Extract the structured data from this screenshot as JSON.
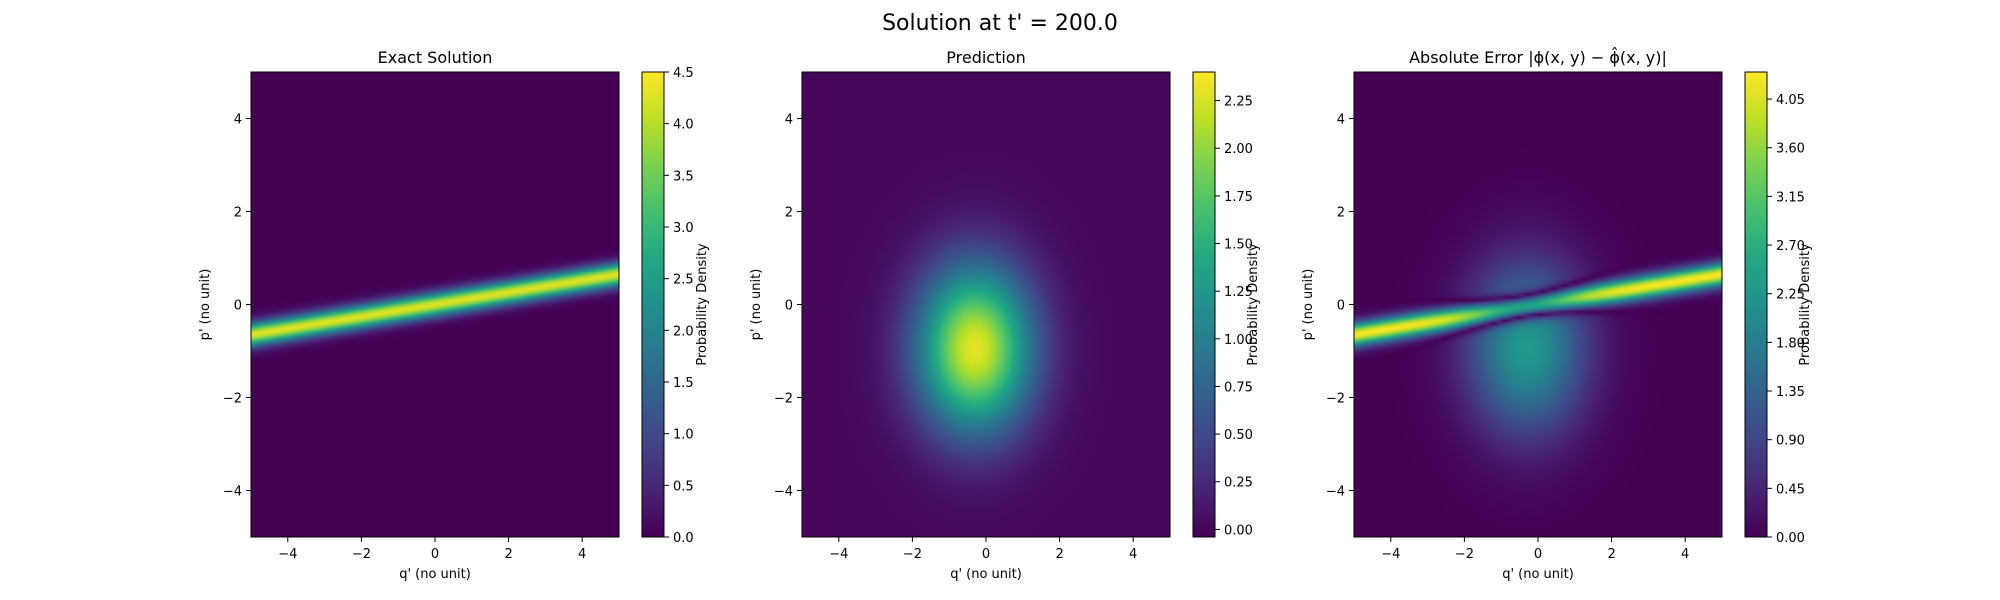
{
  "suptitle": "Solution at t' = 200.0",
  "colors": {
    "viridis": [
      "#440154",
      "#482475",
      "#414487",
      "#355f8d",
      "#2a788e",
      "#21918c",
      "#22a884",
      "#44bf70",
      "#7ad151",
      "#bddf26",
      "#fde725"
    ]
  },
  "chart_data": [
    {
      "type": "heatmap",
      "title": "Exact Solution",
      "xlabel": "q' (no unit)",
      "ylabel": "p' (no unit)",
      "xlim": [
        -5,
        5
      ],
      "ylim": [
        -5,
        5
      ],
      "xticks": [
        -4,
        -2,
        0,
        2,
        4
      ],
      "yticks": [
        -4,
        -2,
        0,
        2,
        4
      ],
      "xtick_labels": [
        "−4",
        "−2",
        "0",
        "2",
        "4"
      ],
      "ytick_labels": [
        "−4",
        "−2",
        "0",
        "2",
        "4"
      ],
      "colorbar": {
        "label": "Probability Density",
        "range": [
          0,
          4.5
        ],
        "ticks": [
          0,
          0.5,
          1,
          1.5,
          2,
          2.5,
          3,
          3.5,
          4,
          4.5
        ],
        "tick_labels": [
          "0.0",
          "0.5",
          "1.0",
          "1.5",
          "2.0",
          "2.5",
          "3.0",
          "3.5",
          "4.0",
          "4.5"
        ]
      },
      "features": [
        {
          "shape": "ridge",
          "through": [
            0,
            0
          ],
          "slope": 0.13,
          "width": 0.17,
          "peak": 4.3
        }
      ]
    },
    {
      "type": "heatmap",
      "title": "Prediction",
      "xlabel": "q' (no unit)",
      "ylabel": "p' (no unit)",
      "xlim": [
        -5,
        5
      ],
      "ylim": [
        -5,
        5
      ],
      "xticks": [
        -4,
        -2,
        0,
        2,
        4
      ],
      "yticks": [
        -4,
        -2,
        0,
        2,
        4
      ],
      "xtick_labels": [
        "−4",
        "−2",
        "0",
        "2",
        "4"
      ],
      "ytick_labels": [
        "−4",
        "−2",
        "0",
        "2",
        "4"
      ],
      "colorbar": {
        "label": "Probability Density",
        "range": [
          -0.04,
          2.4
        ],
        "ticks": [
          0,
          0.25,
          0.5,
          0.75,
          1,
          1.25,
          1.5,
          1.75,
          2,
          2.25
        ],
        "tick_labels": [
          "0.00",
          "0.25",
          "0.50",
          "0.75",
          "1.00",
          "1.25",
          "1.50",
          "1.75",
          "2.00",
          "2.25"
        ]
      },
      "features": [
        {
          "shape": "blob",
          "center": [
            -0.3,
            -0.95
          ],
          "sigma": [
            1.1,
            1.25
          ],
          "peak": 2.3
        }
      ]
    },
    {
      "type": "heatmap",
      "title": "Absolute Error |ϕ(x, y) − ϕ̂(x, y)|",
      "xlabel": "q' (no unit)",
      "ylabel": "p' (no unit)",
      "xlim": [
        -5,
        5
      ],
      "ylim": [
        -5,
        5
      ],
      "xticks": [
        -4,
        -2,
        0,
        2,
        4
      ],
      "yticks": [
        -4,
        -2,
        0,
        2,
        4
      ],
      "xtick_labels": [
        "−4",
        "−2",
        "0",
        "2",
        "4"
      ],
      "ytick_labels": [
        "−4",
        "−2",
        "0",
        "2",
        "4"
      ],
      "colorbar": {
        "label": "Probability Density",
        "range": [
          0,
          4.3
        ],
        "ticks": [
          0,
          0.45,
          0.9,
          1.35,
          1.8,
          2.25,
          2.7,
          3.15,
          3.6,
          4.05
        ],
        "tick_labels": [
          "0.00",
          "0.45",
          "0.90",
          "1.35",
          "1.80",
          "2.25",
          "2.70",
          "3.15",
          "3.60",
          "4.05"
        ]
      },
      "features": [
        {
          "shape": "abs_difference",
          "of": [
            "ridge",
            "blob"
          ]
        }
      ]
    }
  ]
}
